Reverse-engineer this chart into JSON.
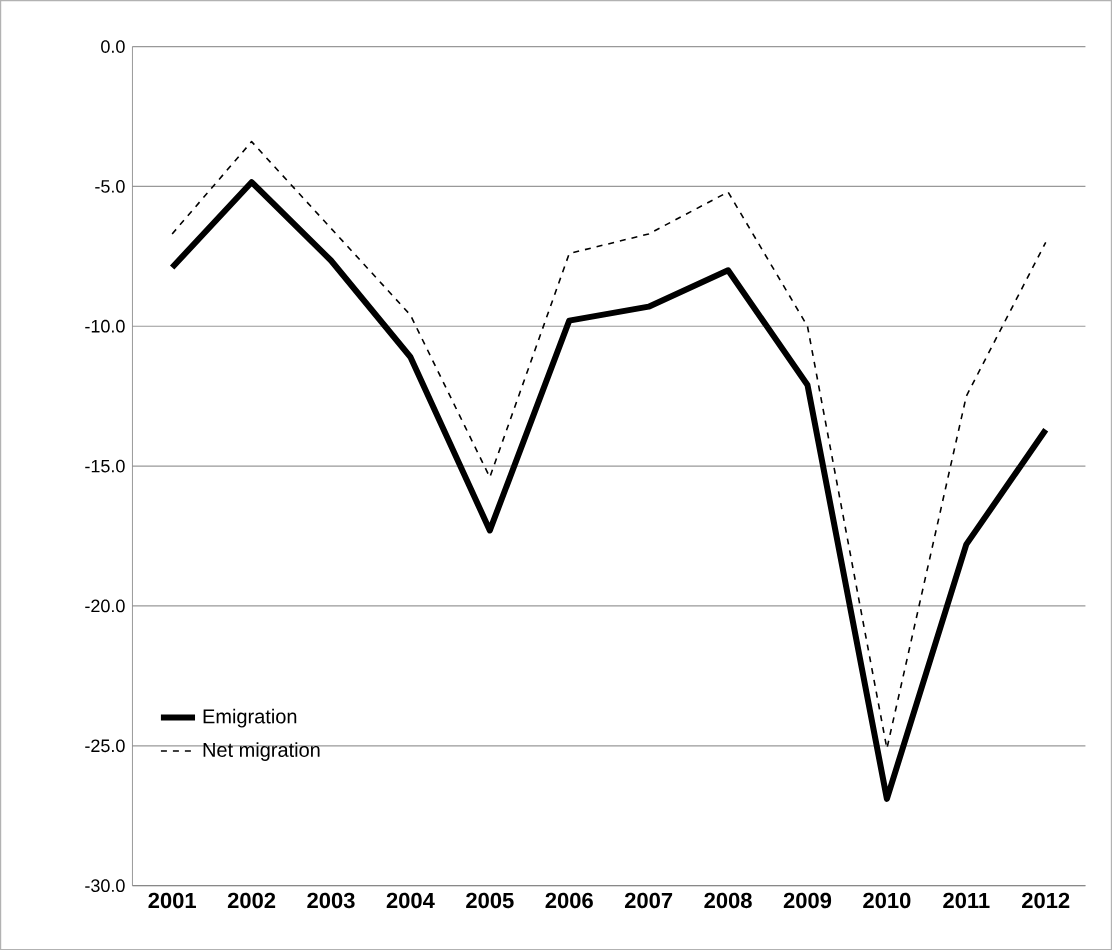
{
  "chart_data": {
    "type": "line",
    "categories": [
      "2001",
      "2002",
      "2003",
      "2004",
      "2005",
      "2006",
      "2007",
      "2008",
      "2009",
      "2010",
      "2011",
      "2012"
    ],
    "series": [
      {
        "name": "Emigration",
        "color": "#000000",
        "line_style": "solid",
        "values": [
          -7.9,
          -4.85,
          -7.65,
          -11.1,
          -17.3,
          -9.8,
          -9.3,
          -8.0,
          -12.1,
          -26.9,
          -17.8,
          -13.7
        ]
      },
      {
        "name": "Net migration",
        "color": "#000000",
        "line_style": "dashed",
        "values": [
          -6.7,
          -3.4,
          -6.5,
          -9.6,
          -15.4,
          -7.4,
          -6.7,
          -5.2,
          -10.0,
          -25.1,
          -12.5,
          -7.0
        ]
      }
    ],
    "ylim": [
      -30,
      0
    ],
    "yticks": [
      {
        "value": -30,
        "label": "-30.0"
      },
      {
        "value": -25,
        "label": "-25.0"
      },
      {
        "value": -20,
        "label": "-20.0"
      },
      {
        "value": -15,
        "label": "-15.0"
      },
      {
        "value": -10,
        "label": "-10.0"
      },
      {
        "value": -5,
        "label": "-5.0"
      },
      {
        "value": 0,
        "label": "0.0"
      }
    ],
    "grid": "y",
    "legend": "bottom left",
    "marker": "none"
  }
}
